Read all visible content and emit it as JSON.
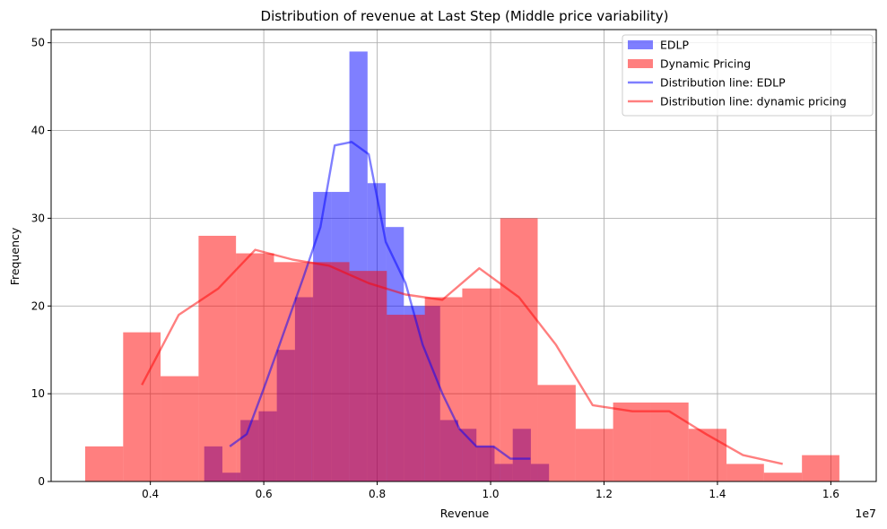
{
  "chart_data": {
    "type": "bar",
    "title": "Distribution of revenue at Last Step (Middle price variability)",
    "xlabel": "Revenue",
    "ylabel": "Frequency",
    "x_offset_label": "1e7",
    "xlim": [
      2250000,
      16800000
    ],
    "ylim": [
      0,
      51.5
    ],
    "x_ticks": [
      4000000,
      6000000,
      8000000,
      10000000,
      12000000,
      14000000,
      16000000
    ],
    "x_tick_labels": [
      "0.4",
      "0.6",
      "0.8",
      "1.0",
      "1.2",
      "1.4",
      "1.6"
    ],
    "y_ticks": [
      0,
      10,
      20,
      30,
      40,
      50
    ],
    "y_tick_labels": [
      "0",
      "10",
      "20",
      "30",
      "40",
      "50"
    ],
    "grid": true,
    "legend_position": "upper right",
    "series": [
      {
        "name": "EDLP",
        "kind": "histogram",
        "color": "#0000ff",
        "opacity": 0.5,
        "bins": [
          {
            "x0": 4950000,
            "x1": 5270000,
            "count": 4
          },
          {
            "x0": 5270000,
            "x1": 5590000,
            "count": 1
          },
          {
            "x0": 5590000,
            "x1": 5910000,
            "count": 7
          },
          {
            "x0": 5910000,
            "x1": 6230000,
            "count": 8
          },
          {
            "x0": 6230000,
            "x1": 6550000,
            "count": 15
          },
          {
            "x0": 6550000,
            "x1": 6870000,
            "count": 21
          },
          {
            "x0": 6870000,
            "x1": 7190000,
            "count": 33
          },
          {
            "x0": 7190000,
            "x1": 7510000,
            "count": 33
          },
          {
            "x0": 7510000,
            "x1": 7830000,
            "count": 49
          },
          {
            "x0": 7830000,
            "x1": 8150000,
            "count": 34
          },
          {
            "x0": 8150000,
            "x1": 8470000,
            "count": 29
          },
          {
            "x0": 8470000,
            "x1": 8790000,
            "count": 20
          },
          {
            "x0": 8790000,
            "x1": 9110000,
            "count": 20
          },
          {
            "x0": 9110000,
            "x1": 9430000,
            "count": 7
          },
          {
            "x0": 9430000,
            "x1": 9750000,
            "count": 6
          },
          {
            "x0": 9750000,
            "x1": 10070000,
            "count": 4
          },
          {
            "x0": 10070000,
            "x1": 10390000,
            "count": 2
          },
          {
            "x0": 10390000,
            "x1": 10710000,
            "count": 6
          },
          {
            "x0": 10710000,
            "x1": 11030000,
            "count": 2
          }
        ]
      },
      {
        "name": "Dynamic Pricing",
        "kind": "histogram",
        "color": "#ff0000",
        "opacity": 0.5,
        "bins": [
          {
            "x0": 2850000,
            "x1": 3520000,
            "count": 4
          },
          {
            "x0": 3520000,
            "x1": 4180000,
            "count": 17
          },
          {
            "x0": 4180000,
            "x1": 4850000,
            "count": 12
          },
          {
            "x0": 4850000,
            "x1": 5510000,
            "count": 28
          },
          {
            "x0": 5510000,
            "x1": 6180000,
            "count": 26
          },
          {
            "x0": 6180000,
            "x1": 6840000,
            "count": 25
          },
          {
            "x0": 6840000,
            "x1": 7510000,
            "count": 25
          },
          {
            "x0": 7510000,
            "x1": 8170000,
            "count": 24
          },
          {
            "x0": 8170000,
            "x1": 8840000,
            "count": 19
          },
          {
            "x0": 8840000,
            "x1": 9500000,
            "count": 21
          },
          {
            "x0": 9500000,
            "x1": 10170000,
            "count": 22
          },
          {
            "x0": 10170000,
            "x1": 10830000,
            "count": 30
          },
          {
            "x0": 10830000,
            "x1": 11500000,
            "count": 11
          },
          {
            "x0": 11500000,
            "x1": 12160000,
            "count": 6
          },
          {
            "x0": 12160000,
            "x1": 12830000,
            "count": 9
          },
          {
            "x0": 12830000,
            "x1": 13490000,
            "count": 9
          },
          {
            "x0": 13490000,
            "x1": 14160000,
            "count": 6
          },
          {
            "x0": 14160000,
            "x1": 14820000,
            "count": 2
          },
          {
            "x0": 14820000,
            "x1": 15490000,
            "count": 1
          },
          {
            "x0": 15490000,
            "x1": 16150000,
            "count": 3
          }
        ]
      },
      {
        "name": "Distribution line: EDLP",
        "kind": "line",
        "color": "#0000ff",
        "opacity": 0.5,
        "points": [
          [
            5400000,
            4.0
          ],
          [
            5700000,
            5.4
          ],
          [
            6000000,
            10.6
          ],
          [
            6300000,
            16.0
          ],
          [
            6700000,
            23.3
          ],
          [
            7000000,
            29.0
          ],
          [
            7250000,
            38.3
          ],
          [
            7550000,
            38.7
          ],
          [
            7850000,
            37.3
          ],
          [
            8150000,
            27.3
          ],
          [
            8500000,
            22.6
          ],
          [
            8800000,
            15.6
          ],
          [
            9150000,
            10.0
          ],
          [
            9450000,
            6.0
          ],
          [
            9750000,
            4.0
          ],
          [
            10050000,
            4.0
          ],
          [
            10350000,
            2.6
          ],
          [
            10700000,
            2.6
          ]
        ]
      },
      {
        "name": "Distribution line: dynamic pricing",
        "kind": "line",
        "color": "#ff0000",
        "opacity": 0.5,
        "points": [
          [
            3850000,
            11.0
          ],
          [
            4500000,
            19.0
          ],
          [
            5200000,
            22.0
          ],
          [
            5850000,
            26.4
          ],
          [
            6500000,
            25.3
          ],
          [
            7150000,
            24.6
          ],
          [
            7850000,
            22.6
          ],
          [
            8500000,
            21.3
          ],
          [
            9150000,
            20.7
          ],
          [
            9800000,
            24.3
          ],
          [
            10500000,
            21.0
          ],
          [
            11150000,
            15.6
          ],
          [
            11800000,
            8.7
          ],
          [
            12500000,
            8.0
          ],
          [
            13150000,
            8.0
          ],
          [
            13800000,
            5.4
          ],
          [
            14450000,
            3.0
          ],
          [
            15150000,
            2.0
          ]
        ]
      }
    ]
  }
}
